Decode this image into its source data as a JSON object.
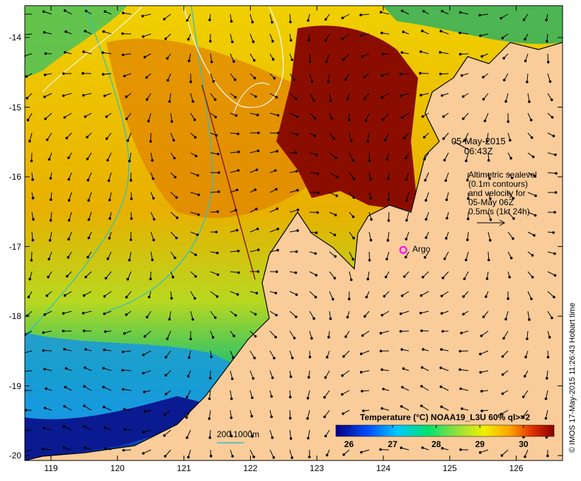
{
  "map": {
    "lon_ticks": [
      "119",
      "120",
      "121",
      "122",
      "123",
      "124",
      "125",
      "126"
    ],
    "lat_ticks": [
      "-14",
      "-15",
      "-16",
      "-17",
      "-18",
      "-19",
      "-20"
    ],
    "lon_range": [
      118.6,
      126.7
    ],
    "lat_range": [
      -20.1,
      -13.6
    ],
    "colors": {
      "land": "#f9cc9a",
      "ocean_warm": "#8b0d00",
      "ocean_cool": "#001a8c",
      "contour": "#ffffff",
      "bathymetry": "#30c0c0"
    }
  },
  "annotations": {
    "date": "05-May-2015",
    "time": "06:43Z",
    "legend_lines": [
      "Altimetric sealevel",
      "(0.1m contours)",
      "and velocity for",
      "05-May 06Z",
      "0.5m/s (1kt 24h)"
    ],
    "scale_label": "200  1000m",
    "argo_label": "Argo",
    "argo_position": {
      "lon": 124.3,
      "lat": -17.05
    }
  },
  "colorbar": {
    "title": "Temperature (°C) NOAA19_L3U 60% ql>=2",
    "tick_labels": [
      "26",
      "27",
      "28",
      "29",
      "30"
    ],
    "range": [
      25.7,
      30.7
    ],
    "colors": [
      "#000080",
      "#0050ff",
      "#00c8ff",
      "#00e070",
      "#90e040",
      "#f0f000",
      "#ffa000",
      "#e03000",
      "#8b0000"
    ]
  },
  "credit": "© IMOS 17-May-2015 11:26:43 Hobart time"
}
